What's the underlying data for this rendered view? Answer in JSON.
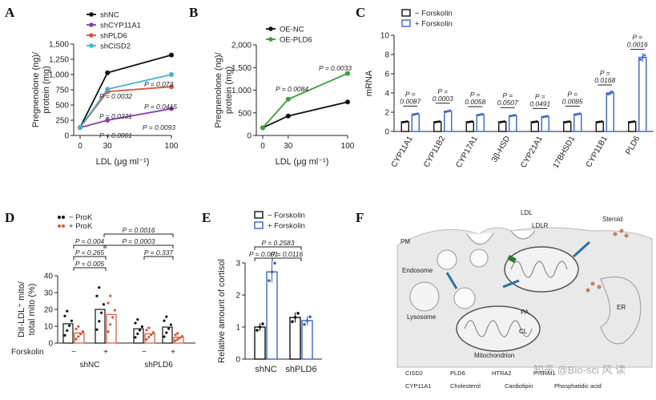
{
  "panel_labels": [
    "A",
    "B",
    "C",
    "D",
    "E",
    "F"
  ],
  "watermark": "知乎 @Bio-sci 风 读",
  "chart_data": [
    {
      "id": "A",
      "type": "line",
      "ylabel": "Pregnenolone (ng)/ protein (mg)",
      "ylabel_lines": [
        "Pregnenolone (ng)/",
        "protein (mg)"
      ],
      "xlabel": "LDL (μg ml⁻¹)",
      "x": [
        0,
        30,
        100
      ],
      "xticks": [
        "0",
        "30",
        "100"
      ],
      "ylim": [
        0,
        1500
      ],
      "yticks": [
        "0",
        "250",
        "500",
        "750",
        "1,000",
        "1,250",
        "1,500"
      ],
      "series": [
        {
          "name": "shNC",
          "color": "#111111",
          "values": [
            130,
            1030,
            1320
          ]
        },
        {
          "name": "shCYP11A1",
          "color": "#8b3fa8",
          "values": [
            130,
            250,
            440
          ]
        },
        {
          "name": "shPLD6",
          "color": "#d9553b",
          "values": [
            130,
            720,
            800
          ]
        },
        {
          "name": "shCISD2",
          "color": "#45b1d3",
          "values": [
            130,
            760,
            1000
          ]
        }
      ],
      "annotations": [
        "P = 0.0032",
        "P = 0.073",
        "P = 0.0415",
        "P = 0.0331",
        "P = 0.0093",
        "P < 0.0001"
      ]
    },
    {
      "id": "B",
      "type": "line",
      "ylabel": "Pregnenolone (ng)/ protein (mg)",
      "ylabel_lines": [
        "Pregnenolone (ng)/",
        "protein (mg)"
      ],
      "xlabel": "LDL (μg ml⁻¹)",
      "x": [
        0,
        30,
        100
      ],
      "xticks": [
        "0",
        "30",
        "100"
      ],
      "ylim": [
        0,
        2000
      ],
      "yticks": [
        "0",
        "500",
        "1,000",
        "1,500",
        "2,000"
      ],
      "series": [
        {
          "name": "OE-NC",
          "color": "#111111",
          "values": [
            170,
            430,
            740
          ]
        },
        {
          "name": "OE-PLD6",
          "color": "#3a9e3a",
          "values": [
            170,
            800,
            1370
          ]
        }
      ],
      "annotations": [
        "P = 0.0084",
        "P = 0.0033"
      ]
    },
    {
      "id": "C",
      "type": "bar",
      "ylabel": "mRNA",
      "ylim": [
        0,
        10
      ],
      "yticks": [
        "0",
        "2",
        "4",
        "6",
        "8",
        "10"
      ],
      "categories": [
        "CYP11A1",
        "CYP11B2",
        "CYP17A1",
        "3β-HSD",
        "CYP21A1",
        "17BHSD1",
        "CYP11B1",
        "PLD6"
      ],
      "series": [
        {
          "name": "− Forskolin",
          "color": "#111111",
          "values": [
            1,
            1,
            1,
            1,
            1,
            1,
            1,
            1
          ]
        },
        {
          "name": "+ Forskolin",
          "color": "#3a66c4",
          "values": [
            1.8,
            2.1,
            1.75,
            1.65,
            1.55,
            1.8,
            4.0,
            7.7
          ]
        }
      ],
      "p_values": [
        "0.0087",
        "0.0003",
        "0.0058",
        "0.0507",
        "0.0491",
        "0.0085",
        "0.0168",
        "0.0016"
      ],
      "p_prefix": "P ="
    },
    {
      "id": "D",
      "type": "bar",
      "ylabel": "DiI-LDL⁺ mito/ total mito (%)",
      "ylabel_lines": [
        "DiI-LDL⁺ mito/",
        "total mito (%)"
      ],
      "ylim": [
        0,
        40
      ],
      "yticks": [
        "0",
        "10",
        "20",
        "30",
        "40"
      ],
      "groups": [
        "shNC",
        "shPLD6"
      ],
      "row_label": "Forskolin",
      "conditions": [
        "−",
        "+",
        "−",
        "+"
      ],
      "series": [
        {
          "name": "− ProK",
          "color": "#111111",
          "values": [
            11.5,
            20,
            8.5,
            9.5
          ]
        },
        {
          "name": "+ ProK",
          "color": "#d9553b",
          "values": [
            6,
            17,
            5.5,
            3.5
          ]
        }
      ],
      "comparisons": [
        "P = 0.0016",
        "P = 0.004",
        "P = 0.0003",
        "P = 0.265",
        "P = 0.337",
        "P = 0.005"
      ]
    },
    {
      "id": "E",
      "type": "bar",
      "ylabel": "Relative amount of cortisol",
      "ylim": [
        0,
        3
      ],
      "yticks": [
        "0",
        "1",
        "2",
        "3"
      ],
      "categories": [
        "shNC",
        "shPLD6"
      ],
      "series": [
        {
          "name": "− Forskolin",
          "color": "#111111",
          "values": [
            1.0,
            1.3
          ]
        },
        {
          "name": "+ Forskolin",
          "color": "#3a66c4",
          "values": [
            2.72,
            1.2
          ]
        }
      ],
      "comparisons": [
        "P = 0.2583",
        "P = 0.001",
        "P = 0.0116"
      ]
    }
  ],
  "diagram_F": {
    "labels": [
      "LDL",
      "LDLR",
      "Steroid",
      "PM",
      "Endosome",
      "Lysosome",
      "Mitochondrion",
      "ER",
      "PA",
      "CL"
    ],
    "legend": [
      "CISD2",
      "PLD6",
      "HTRA2",
      "PITRM1",
      "CYP11A1",
      "Cholesterol",
      "Cardiolipin",
      "Phosphatidic acid"
    ]
  }
}
